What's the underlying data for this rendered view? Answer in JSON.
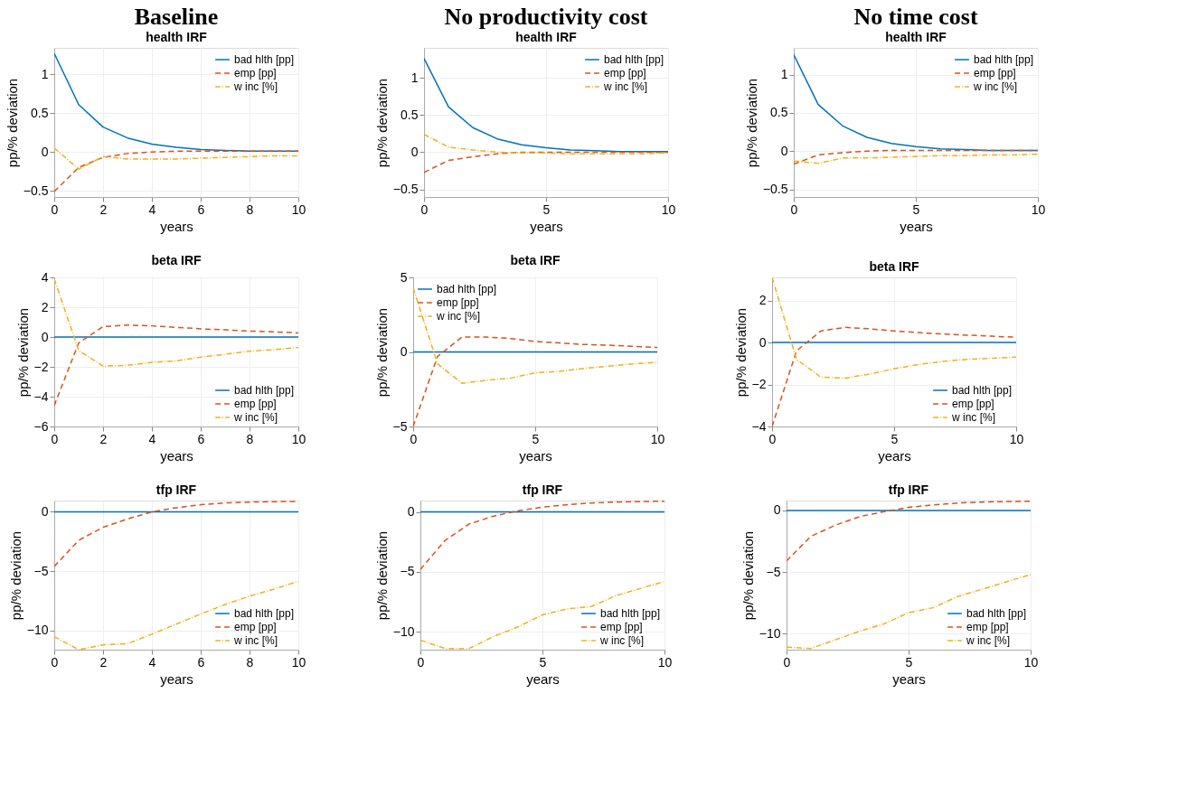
{
  "chart_data": [
    {
      "type": "line",
      "title": "Baseline",
      "subtitle": "health IRF",
      "xlabel": "years",
      "ylabel": "pp/% deviation",
      "x": [
        0,
        1,
        2,
        3,
        4,
        5,
        6,
        7,
        8,
        9,
        10
      ],
      "xlim": [
        0,
        10
      ],
      "xticks": [
        0,
        2,
        4,
        6,
        8,
        10
      ],
      "ylim": [
        -0.58,
        1.34
      ],
      "yticks": [
        -0.5,
        0,
        0.5,
        1
      ],
      "grid": true,
      "legend": "top right",
      "series": [
        {
          "name": "bad hlth [pp]",
          "color": "#0072bd",
          "line_style": "solid",
          "values": [
            1.27,
            0.61,
            0.32,
            0.18,
            0.1,
            0.06,
            0.03,
            0.02,
            0.01,
            0.01,
            0.01
          ]
        },
        {
          "name": "emp [pp]",
          "color": "#d95319",
          "line_style": "dashed",
          "values": [
            -0.51,
            -0.2,
            -0.07,
            -0.02,
            0,
            0.01,
            0.01,
            0.01,
            0.01,
            0.01,
            0.01
          ]
        },
        {
          "name": "w inc [%]",
          "color": "#edb120",
          "line_style": "dotted",
          "values": [
            0.05,
            -0.22,
            -0.06,
            -0.09,
            -0.09,
            -0.09,
            -0.08,
            -0.07,
            -0.06,
            -0.05,
            -0.05
          ]
        }
      ]
    },
    {
      "type": "line",
      "title": "No productivity cost",
      "subtitle": "health IRF",
      "xlabel": "years",
      "ylabel": "pp/% deviation",
      "x": [
        0,
        1,
        2,
        3,
        4,
        5,
        6,
        7,
        8,
        9,
        10
      ],
      "xlim": [
        0,
        10
      ],
      "xticks": [
        0,
        5,
        10
      ],
      "ylim": [
        -0.6,
        1.4
      ],
      "yticks": [
        -0.5,
        0,
        0.5,
        1
      ],
      "grid": true,
      "legend": "top right",
      "series": [
        {
          "name": "bad hlth [pp]",
          "color": "#0072bd",
          "line_style": "solid",
          "values": [
            1.26,
            0.61,
            0.33,
            0.18,
            0.1,
            0.06,
            0.03,
            0.02,
            0.01,
            0.01,
            0.01
          ]
        },
        {
          "name": "emp [pp]",
          "color": "#d95319",
          "line_style": "dashed",
          "values": [
            -0.27,
            -0.11,
            -0.06,
            -0.02,
            0,
            0,
            0,
            0,
            0,
            0,
            0
          ]
        },
        {
          "name": "w inc [%]",
          "color": "#edb120",
          "line_style": "dotted",
          "values": [
            0.24,
            0.07,
            0.03,
            0,
            -0.01,
            -0.01,
            -0.02,
            -0.02,
            -0.02,
            -0.02,
            -0.01
          ]
        }
      ]
    },
    {
      "type": "line",
      "title": "No time cost",
      "subtitle": "health IRF",
      "xlabel": "years",
      "ylabel": "pp/% deviation",
      "x": [
        0,
        1,
        2,
        3,
        4,
        5,
        6,
        7,
        8,
        9,
        10
      ],
      "xlim": [
        0,
        10
      ],
      "xticks": [
        0,
        5,
        10
      ],
      "ylim": [
        -0.6,
        1.35
      ],
      "yticks": [
        -0.5,
        0,
        0.5,
        1
      ],
      "grid": true,
      "legend": "top right",
      "series": [
        {
          "name": "bad hlth [pp]",
          "color": "#0072bd",
          "line_style": "solid",
          "values": [
            1.26,
            0.61,
            0.33,
            0.18,
            0.1,
            0.06,
            0.03,
            0.02,
            0.01,
            0.01,
            0.01
          ]
        },
        {
          "name": "emp [pp]",
          "color": "#d95319",
          "line_style": "dashed",
          "values": [
            -0.17,
            -0.05,
            -0.02,
            0,
            0.01,
            0.01,
            0.01,
            0.01,
            0.01,
            0.01,
            0.01
          ]
        },
        {
          "name": "w inc [%]",
          "color": "#edb120",
          "line_style": "dotted",
          "values": [
            -0.13,
            -0.16,
            -0.09,
            -0.09,
            -0.08,
            -0.07,
            -0.06,
            -0.06,
            -0.05,
            -0.05,
            -0.04
          ]
        }
      ]
    },
    {
      "type": "line",
      "title": "beta IRF",
      "xlabel": "years",
      "ylabel": "pp/% deviation",
      "x": [
        0,
        1,
        2,
        3,
        4,
        5,
        6,
        7,
        8,
        9,
        10
      ],
      "xlim": [
        0,
        10
      ],
      "xticks": [
        0,
        2,
        4,
        6,
        8,
        10
      ],
      "ylim": [
        -6,
        4
      ],
      "yticks": [
        -6,
        -4,
        -2,
        0,
        2,
        4
      ],
      "grid": true,
      "legend": "bottom right",
      "series": [
        {
          "name": "bad hlth [pp]",
          "color": "#0072bd",
          "line_style": "solid",
          "values": [
            0,
            0,
            0,
            0,
            0,
            0,
            0,
            0,
            0,
            0,
            0
          ]
        },
        {
          "name": "emp [pp]",
          "color": "#d95319",
          "line_style": "dashed",
          "values": [
            -4.6,
            -0.4,
            0.7,
            0.8,
            0.75,
            0.65,
            0.55,
            0.48,
            0.4,
            0.35,
            0.28
          ]
        },
        {
          "name": "w inc [%]",
          "color": "#edb120",
          "line_style": "dotted",
          "values": [
            3.9,
            -0.9,
            -1.95,
            -1.9,
            -1.7,
            -1.6,
            -1.35,
            -1.15,
            -0.95,
            -0.85,
            -0.7
          ]
        }
      ]
    },
    {
      "type": "line",
      "title": "beta IRF",
      "xlabel": "years",
      "ylabel": "pp/% deviation",
      "x": [
        0,
        1,
        2,
        3,
        4,
        5,
        6,
        7,
        8,
        9,
        10
      ],
      "xlim": [
        0,
        10
      ],
      "xticks": [
        0,
        5,
        10
      ],
      "ylim": [
        -5,
        5
      ],
      "yticks": [
        -5,
        0,
        5
      ],
      "grid": true,
      "legend": "top left",
      "series": [
        {
          "name": "bad hlth [pp]",
          "color": "#0072bd",
          "line_style": "solid",
          "values": [
            0,
            0,
            0,
            0,
            0,
            0,
            0,
            0,
            0,
            0,
            0
          ]
        },
        {
          "name": "emp [pp]",
          "color": "#d95319",
          "line_style": "dashed",
          "values": [
            -5,
            -0.3,
            1,
            1,
            0.9,
            0.7,
            0.6,
            0.5,
            0.45,
            0.38,
            0.3
          ]
        },
        {
          "name": "w inc [%]",
          "color": "#edb120",
          "line_style": "dotted",
          "values": [
            4.3,
            -0.8,
            -2.1,
            -1.9,
            -1.75,
            -1.4,
            -1.3,
            -1.1,
            -0.95,
            -0.8,
            -0.7
          ]
        }
      ]
    },
    {
      "type": "line",
      "title": "beta IRF",
      "xlabel": "years",
      "ylabel": "pp/% deviation",
      "x": [
        0,
        1,
        2,
        3,
        4,
        5,
        6,
        7,
        8,
        9,
        10
      ],
      "xlim": [
        0,
        10
      ],
      "xticks": [
        0,
        5,
        10
      ],
      "ylim": [
        -4,
        3.1
      ],
      "yticks": [
        -4,
        -2,
        0,
        2
      ],
      "grid": true,
      "legend": "bottom right",
      "series": [
        {
          "name": "bad hlth [pp]",
          "color": "#0072bd",
          "line_style": "solid",
          "values": [
            0,
            0,
            0,
            0,
            0,
            0,
            0,
            0,
            0,
            0,
            0
          ]
        },
        {
          "name": "emp [pp]",
          "color": "#d95319",
          "line_style": "dashed",
          "values": [
            -4,
            -0.4,
            0.55,
            0.72,
            0.65,
            0.55,
            0.47,
            0.4,
            0.35,
            0.3,
            0.25
          ]
        },
        {
          "name": "w inc [%]",
          "color": "#edb120",
          "line_style": "dotted",
          "values": [
            3.1,
            -0.8,
            -1.65,
            -1.7,
            -1.5,
            -1.25,
            -1.05,
            -0.9,
            -0.8,
            -0.75,
            -0.7
          ]
        }
      ]
    },
    {
      "type": "line",
      "title": "tfp IRF",
      "xlabel": "years",
      "ylabel": "pp/% deviation",
      "x": [
        0,
        1,
        2,
        3,
        4,
        5,
        6,
        7,
        8,
        9,
        10
      ],
      "xlim": [
        0,
        10
      ],
      "xticks": [
        0,
        2,
        4,
        6,
        8,
        10
      ],
      "ylim": [
        -11.6,
        0.95
      ],
      "yticks": [
        -10,
        -5,
        0
      ],
      "grid": true,
      "legend": "bottom right",
      "series": [
        {
          "name": "bad hlth [pp]",
          "color": "#0072bd",
          "line_style": "solid",
          "values": [
            0,
            0,
            0,
            0,
            0,
            0,
            0,
            0,
            0,
            0,
            0
          ]
        },
        {
          "name": "emp [pp]",
          "color": "#d95319",
          "line_style": "dashed",
          "values": [
            -4.6,
            -2.4,
            -1.3,
            -0.6,
            0,
            0.35,
            0.6,
            0.75,
            0.82,
            0.86,
            0.88
          ]
        },
        {
          "name": "w inc [%]",
          "color": "#edb120",
          "line_style": "dotted",
          "values": [
            -10.5,
            -11.6,
            -11.2,
            -11.1,
            -10.3,
            -9.45,
            -8.6,
            -7.8,
            -7.1,
            -6.5,
            -5.85
          ]
        }
      ]
    },
    {
      "type": "line",
      "title": "tfp IRF",
      "xlabel": "years",
      "ylabel": "pp/% deviation",
      "x": [
        0,
        1,
        2,
        3,
        4,
        5,
        6,
        7,
        8,
        9,
        10
      ],
      "xlim": [
        0,
        10
      ],
      "xticks": [
        0,
        5,
        10
      ],
      "ylim": [
        -11.5,
        0.95
      ],
      "yticks": [
        -10,
        -5,
        0
      ],
      "grid": true,
      "legend": "bottom right",
      "series": [
        {
          "name": "bad hlth [pp]",
          "color": "#0072bd",
          "line_style": "solid",
          "values": [
            0,
            0,
            0,
            0,
            0,
            0,
            0,
            0,
            0,
            0,
            0
          ]
        },
        {
          "name": "emp [pp]",
          "color": "#d95319",
          "line_style": "dashed",
          "values": [
            -4.8,
            -2.4,
            -1,
            -0.35,
            0.1,
            0.4,
            0.6,
            0.75,
            0.82,
            0.87,
            0.9
          ]
        },
        {
          "name": "w inc [%]",
          "color": "#edb120",
          "line_style": "dotted",
          "values": [
            -10.7,
            -11.4,
            -11.4,
            -10.4,
            -9.6,
            -8.6,
            -8.1,
            -7.9,
            -7,
            -6.4,
            -5.8
          ]
        }
      ]
    },
    {
      "type": "line",
      "title": "tfp IRF",
      "xlabel": "years",
      "ylabel": "pp/% deviation",
      "x": [
        0,
        1,
        2,
        3,
        4,
        5,
        6,
        7,
        8,
        9,
        10
      ],
      "xlim": [
        0,
        10
      ],
      "xticks": [
        0,
        5,
        10
      ],
      "ylim": [
        -11.3,
        0.8
      ],
      "yticks": [
        -10,
        -5,
        0
      ],
      "grid": true,
      "legend": "bottom right",
      "series": [
        {
          "name": "bad hlth [pp]",
          "color": "#0072bd",
          "line_style": "solid",
          "values": [
            0,
            0,
            0,
            0,
            0,
            0,
            0,
            0,
            0,
            0,
            0
          ]
        },
        {
          "name": "emp [pp]",
          "color": "#d95319",
          "line_style": "dashed",
          "values": [
            -4.1,
            -2.1,
            -1.2,
            -0.5,
            -0.1,
            0.25,
            0.45,
            0.6,
            0.68,
            0.72,
            0.75
          ]
        },
        {
          "name": "w inc [%]",
          "color": "#edb120",
          "line_style": "dotted",
          "values": [
            -11.1,
            -11.2,
            -10.5,
            -9.8,
            -9.2,
            -8.3,
            -7.9,
            -7,
            -6.4,
            -5.8,
            -5.2
          ]
        }
      ]
    }
  ]
}
